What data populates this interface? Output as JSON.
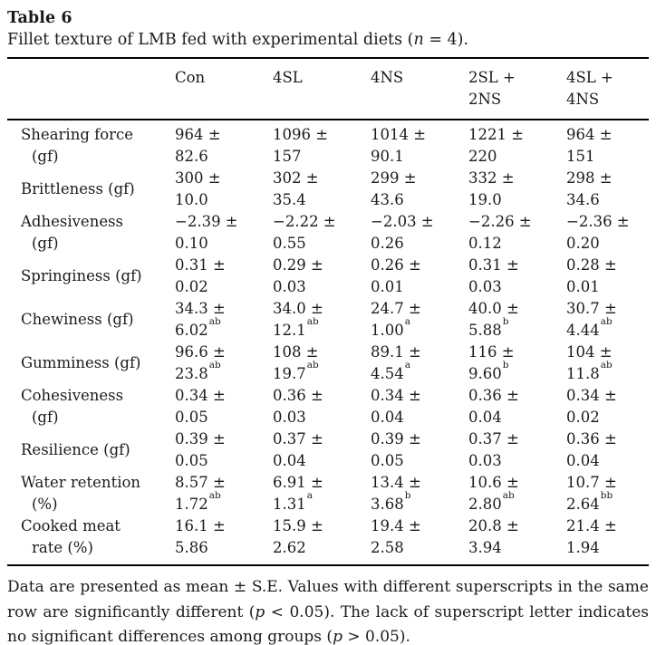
{
  "table": {
    "title": "Table 6",
    "caption_segments": [
      {
        "t": "Fillet texture of LMB fed with experimental diets ("
      },
      {
        "t": "n",
        "i": true
      },
      {
        "t": " = 4)."
      }
    ],
    "columns": [
      {
        "lines": [
          "Con"
        ]
      },
      {
        "lines": [
          "4SL"
        ]
      },
      {
        "lines": [
          "4NS"
        ]
      },
      {
        "lines": [
          "2SL +",
          "2NS"
        ]
      },
      {
        "lines": [
          "4SL +",
          "4NS"
        ]
      }
    ],
    "rows": [
      {
        "label_lines": [
          "Shearing force",
          "(gf)"
        ],
        "cells": [
          {
            "mean": "964 ±",
            "se": "82.6"
          },
          {
            "mean": "1096 ±",
            "se": "157"
          },
          {
            "mean": "1014 ±",
            "se": "90.1"
          },
          {
            "mean": "1221 ±",
            "se": "220"
          },
          {
            "mean": "964 ±",
            "se": "151"
          }
        ]
      },
      {
        "label_lines": [
          "Brittleness (gf)"
        ],
        "cells": [
          {
            "mean": "300 ±",
            "se": "10.0"
          },
          {
            "mean": "302 ±",
            "se": "35.4"
          },
          {
            "mean": "299 ±",
            "se": "43.6"
          },
          {
            "mean": "332 ±",
            "se": "19.0"
          },
          {
            "mean": "298 ±",
            "se": "34.6"
          }
        ]
      },
      {
        "label_lines": [
          "Adhesiveness",
          "(gf)"
        ],
        "cells": [
          {
            "mean": "−2.39 ±",
            "se": "0.10"
          },
          {
            "mean": "−2.22 ±",
            "se": "0.55"
          },
          {
            "mean": "−2.03 ±",
            "se": "0.26"
          },
          {
            "mean": "−2.26 ±",
            "se": "0.12"
          },
          {
            "mean": "−2.36 ±",
            "se": "0.20"
          }
        ]
      },
      {
        "label_lines": [
          "Springiness (gf)"
        ],
        "cells": [
          {
            "mean": "0.31 ±",
            "se": "0.02"
          },
          {
            "mean": "0.29 ±",
            "se": "0.03"
          },
          {
            "mean": "0.26 ±",
            "se": "0.01"
          },
          {
            "mean": "0.31 ±",
            "se": "0.03"
          },
          {
            "mean": "0.28 ±",
            "se": "0.01"
          }
        ]
      },
      {
        "label_lines": [
          "Chewiness (gf)"
        ],
        "cells": [
          {
            "mean": "34.3 ±",
            "se": "6.02",
            "sup": "ab"
          },
          {
            "mean": "34.0 ±",
            "se": "12.1",
            "sup": "ab"
          },
          {
            "mean": "24.7 ±",
            "se": "1.00",
            "sup": "a"
          },
          {
            "mean": "40.0 ±",
            "se": "5.88",
            "sup": "b"
          },
          {
            "mean": "30.7 ±",
            "se": "4.44",
            "sup": "ab"
          }
        ]
      },
      {
        "label_lines": [
          "Gumminess (gf)"
        ],
        "cells": [
          {
            "mean": "96.6 ±",
            "se": "23.8",
            "sup": "ab"
          },
          {
            "mean": "108 ±",
            "se": "19.7",
            "sup": "ab"
          },
          {
            "mean": "89.1 ±",
            "se": "4.54",
            "sup": "a"
          },
          {
            "mean": "116 ±",
            "se": "9.60",
            "sup": "b"
          },
          {
            "mean": "104 ±",
            "se": "11.8",
            "sup": "ab"
          }
        ]
      },
      {
        "label_lines": [
          "Cohesiveness",
          "(gf)"
        ],
        "cells": [
          {
            "mean": "0.34 ±",
            "se": "0.05"
          },
          {
            "mean": "0.36 ±",
            "se": "0.03"
          },
          {
            "mean": "0.34 ±",
            "se": "0.04"
          },
          {
            "mean": "0.36 ±",
            "se": "0.04"
          },
          {
            "mean": "0.34 ±",
            "se": "0.02"
          }
        ]
      },
      {
        "label_lines": [
          "Resilience (gf)"
        ],
        "cells": [
          {
            "mean": "0.39 ±",
            "se": "0.05"
          },
          {
            "mean": "0.37 ±",
            "se": "0.04"
          },
          {
            "mean": "0.39 ±",
            "se": "0.05"
          },
          {
            "mean": "0.37 ±",
            "se": "0.03"
          },
          {
            "mean": "0.36 ±",
            "se": "0.04"
          }
        ]
      },
      {
        "label_lines": [
          "Water retention",
          "(%)"
        ],
        "cells": [
          {
            "mean": "8.57 ±",
            "se": "1.72",
            "sup": "ab"
          },
          {
            "mean": "6.91 ±",
            "se": "1.31",
            "sup": "a"
          },
          {
            "mean": "13.4 ±",
            "se": "3.68",
            "sup": "b"
          },
          {
            "mean": "10.6 ±",
            "se": "2.80",
            "sup": "ab"
          },
          {
            "mean": "10.7 ±",
            "se": "2.64",
            "sup": "bb"
          }
        ]
      },
      {
        "label_lines": [
          "Cooked meat",
          "rate (%)"
        ],
        "cells": [
          {
            "mean": "16.1 ±",
            "se": "5.86"
          },
          {
            "mean": "15.9 ±",
            "se": "2.62"
          },
          {
            "mean": "19.4 ±",
            "se": "2.58"
          },
          {
            "mean": "20.8 ±",
            "se": "3.94"
          },
          {
            "mean": "21.4 ±",
            "se": "1.94"
          }
        ]
      }
    ],
    "footnote_lines": [
      {
        "justify": true,
        "segments": [
          {
            "t": "Data are presented as mean ± S.E. Values with different superscripts in the same"
          }
        ]
      },
      {
        "justify": true,
        "segments": [
          {
            "t": "row are significantly different ("
          },
          {
            "t": "p",
            "i": true
          },
          {
            "t": " < 0.05). The lack of superscript letter indicates"
          }
        ]
      },
      {
        "justify": false,
        "segments": [
          {
            "t": "no significant differences among groups ("
          },
          {
            "t": "p",
            "i": true
          },
          {
            "t": " > 0.05)."
          }
        ]
      }
    ]
  }
}
